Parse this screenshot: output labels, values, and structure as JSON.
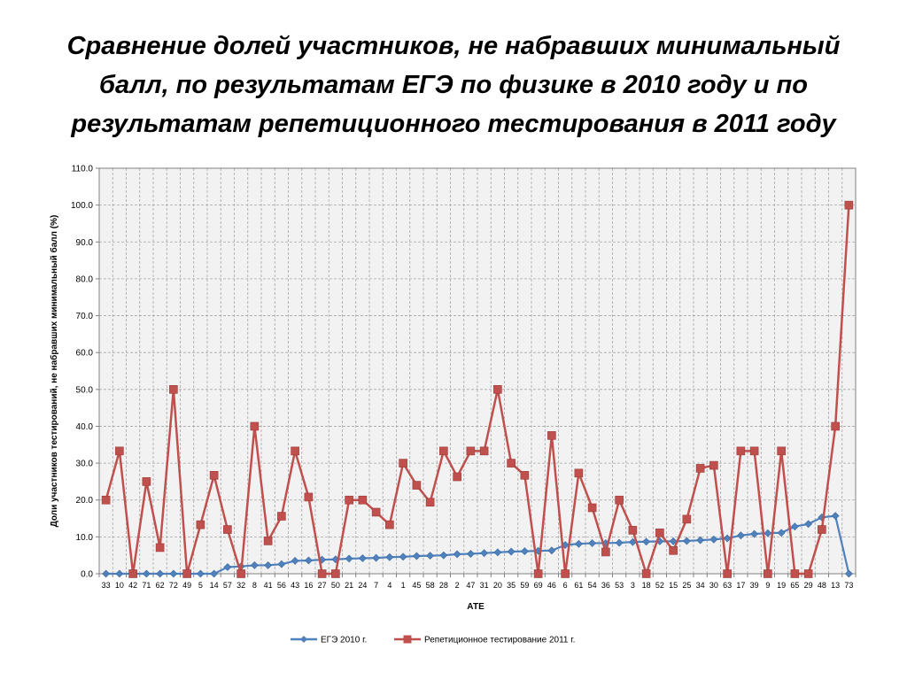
{
  "title_lines": [
    "Сравнение долей участников, не набравших минимальный",
    "балл, по результатам ЕГЭ по физике в 2010 году и по",
    "результатам репетиционного тестирования в 2011 году"
  ],
  "chart_data": {
    "type": "line",
    "xlabel": "АТЕ",
    "ylabel": "Доли участников тестирований, не набравших минимальный балл (%)",
    "ylim": [
      0,
      110
    ],
    "ytick_step": 10,
    "ytick_labels": [
      "0.0",
      "10.0",
      "20.0",
      "30.0",
      "40.0",
      "50.0",
      "60.0",
      "70.0",
      "80.0",
      "90.0",
      "100.0",
      "110.0"
    ],
    "grid": true,
    "legend_position": "bottom",
    "categories": [
      "33",
      "10",
      "42",
      "71",
      "62",
      "72",
      "49",
      "5",
      "14",
      "57",
      "32",
      "8",
      "41",
      "56",
      "43",
      "16",
      "27",
      "50",
      "21",
      "24",
      "7",
      "4",
      "1",
      "45",
      "58",
      "28",
      "2",
      "47",
      "31",
      "20",
      "35",
      "59",
      "69",
      "46",
      "6",
      "61",
      "54",
      "36",
      "53",
      "3",
      "18",
      "52",
      "15",
      "25",
      "34",
      "30",
      "63",
      "17",
      "39",
      "9",
      "19",
      "65",
      "29",
      "48",
      "13",
      "73"
    ],
    "series": [
      {
        "name": "ЕГЭ 2010 г.",
        "color": "#4f81bd",
        "marker": "diamond",
        "values": [
          0,
          0,
          0,
          0,
          0,
          0,
          0,
          0,
          0,
          1.8,
          2.0,
          2.3,
          2.3,
          2.6,
          3.5,
          3.6,
          3.8,
          3.9,
          4.1,
          4.2,
          4.3,
          4.5,
          4.6,
          4.8,
          4.9,
          5.0,
          5.3,
          5.4,
          5.6,
          5.8,
          6.0,
          6.1,
          6.2,
          6.3,
          7.8,
          8.1,
          8.3,
          8.3,
          8.4,
          8.6,
          8.7,
          8.8,
          8.8,
          8.9,
          9.1,
          9.3,
          9.6,
          10.4,
          10.8,
          11.0,
          11.1,
          12.8,
          13.5,
          15.3,
          15.7,
          0
        ]
      },
      {
        "name": "Репетиционное тестирование 2011 г.",
        "color": "#c0504d",
        "marker": "square",
        "values": [
          20.0,
          33.3,
          0,
          25.0,
          7.1,
          50.0,
          0,
          13.3,
          26.7,
          12.0,
          0,
          40.0,
          8.9,
          15.6,
          33.3,
          20.8,
          0,
          0,
          20.0,
          20.0,
          16.7,
          13.3,
          30.0,
          24.0,
          19.4,
          33.3,
          26.3,
          33.3,
          33.3,
          50.0,
          30.0,
          26.7,
          0,
          37.5,
          0,
          27.3,
          17.9,
          5.9,
          20.0,
          11.8,
          0,
          11.1,
          6.3,
          14.8,
          28.6,
          29.4,
          0,
          33.3,
          33.3,
          0,
          33.3,
          0,
          0,
          12.0,
          40.0,
          100.0
        ]
      }
    ]
  }
}
